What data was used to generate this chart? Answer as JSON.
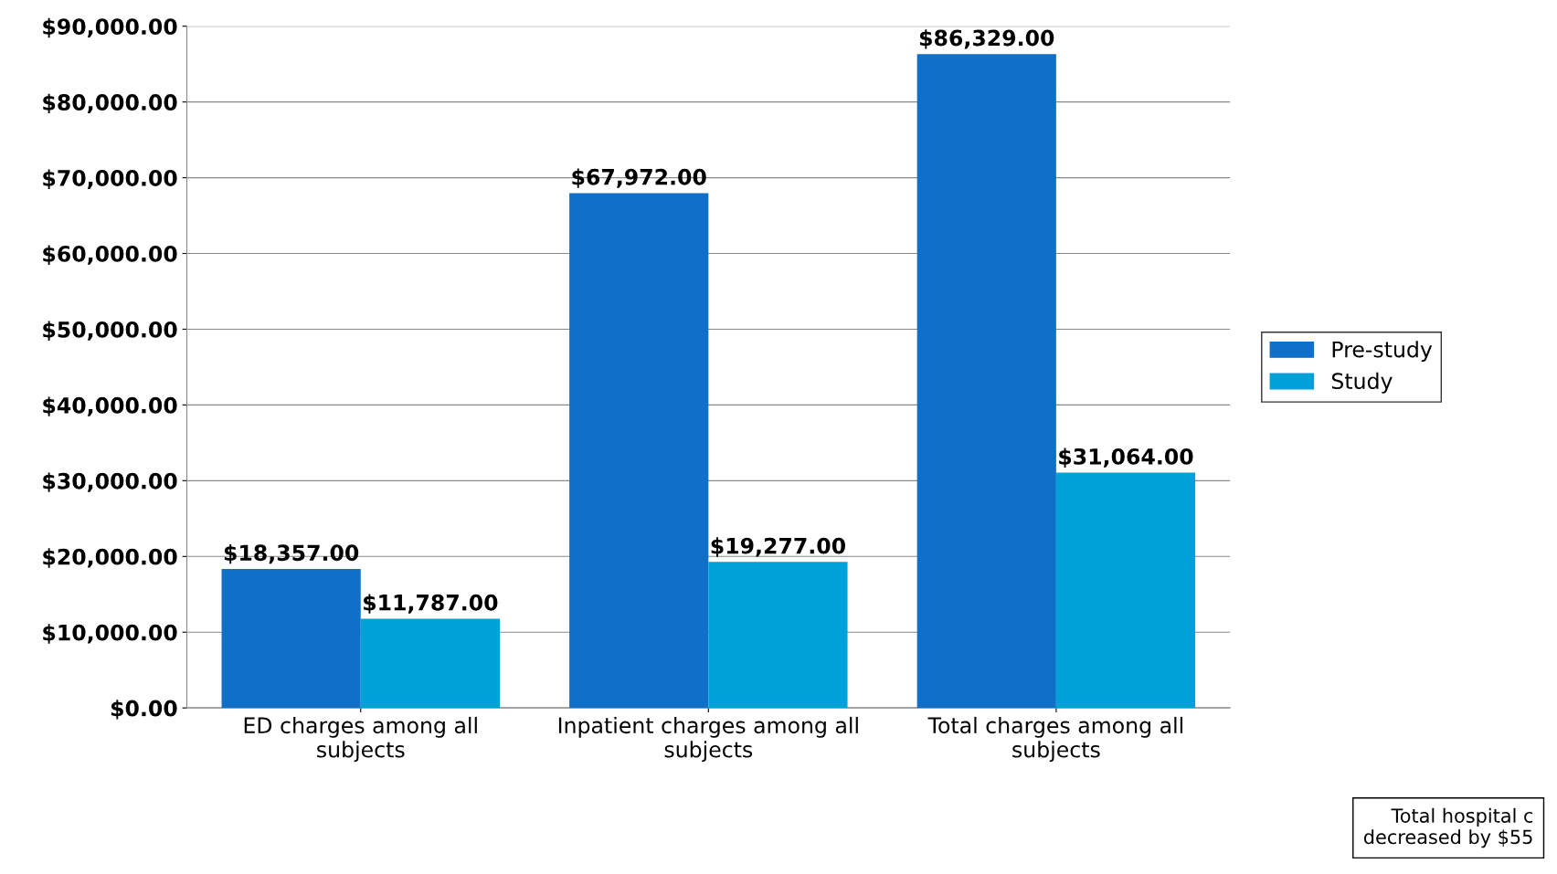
{
  "chart_data": {
    "type": "bar",
    "categories": [
      "ED charges among all subjects",
      "Inpatient charges among all subjects",
      "Total charges among all subjects"
    ],
    "series": [
      {
        "name": "Pre-study",
        "color": "#1070c8",
        "values": [
          18357,
          67972,
          86329
        ],
        "value_labels": [
          "$18,357.00",
          "$67,972.00",
          "$86,329.00"
        ]
      },
      {
        "name": "Study",
        "color": "#00a0d8",
        "values": [
          11787,
          19277,
          31064
        ],
        "value_labels": [
          "$11,787.00",
          "$19,277.00",
          "$31,064.00"
        ]
      }
    ],
    "ylim": [
      0,
      90000
    ],
    "yticks": [
      {
        "value": 0,
        "label": "$0.00"
      },
      {
        "value": 10000,
        "label": "$10,000.00"
      },
      {
        "value": 20000,
        "label": "$20,000.00"
      },
      {
        "value": 30000,
        "label": "$30,000.00"
      },
      {
        "value": 40000,
        "label": "$40,000.00"
      },
      {
        "value": 50000,
        "label": "$50,000.00"
      },
      {
        "value": 60000,
        "label": "$60,000.00"
      },
      {
        "value": 70000,
        "label": "$70,000.00"
      },
      {
        "value": 80000,
        "label": "$80,000.00"
      },
      {
        "value": 90000,
        "label": "$90,000.00"
      }
    ],
    "grid": "y",
    "legend": "right",
    "annotations": [
      "Total hospital c\ndecreased by $55"
    ]
  }
}
